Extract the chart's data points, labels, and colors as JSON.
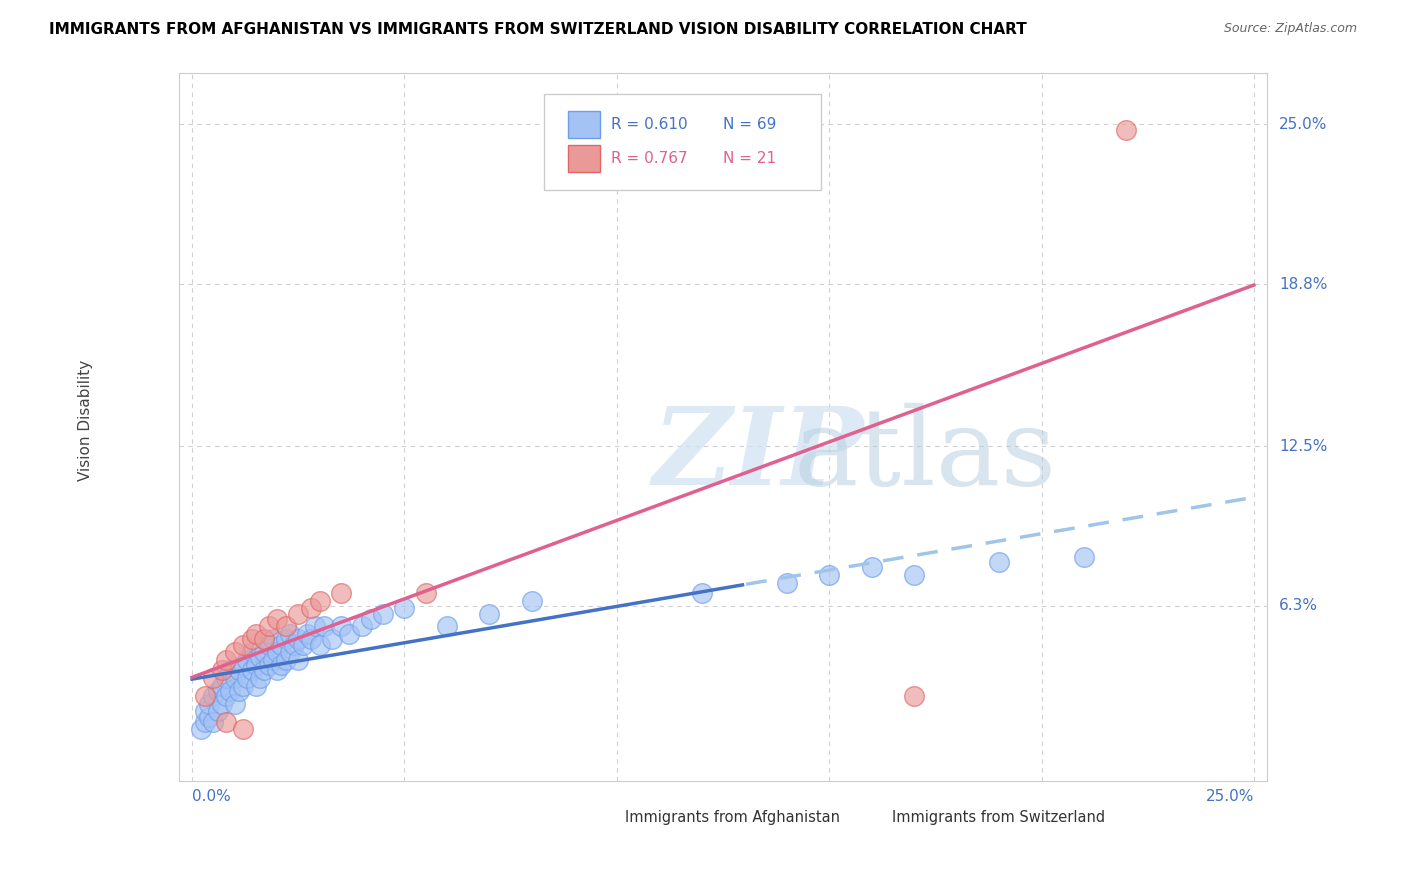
{
  "title": "IMMIGRANTS FROM AFGHANISTAN VS IMMIGRANTS FROM SWITZERLAND VISION DISABILITY CORRELATION CHART",
  "source": "Source: ZipAtlas.com",
  "ylabel": "Vision Disability",
  "ytick_labels": [
    "25.0%",
    "18.8%",
    "12.5%",
    "6.3%"
  ],
  "ytick_values": [
    0.25,
    0.188,
    0.125,
    0.063
  ],
  "xtick_labels": [
    "0.0%",
    "25.0%"
  ],
  "xmin": 0.0,
  "xmax": 0.25,
  "ymin": 0.0,
  "ymax": 0.27,
  "afghanistan_color": "#a4c2f4",
  "afghanistan_edge_color": "#6d9eeb",
  "switzerland_color": "#ea9999",
  "switzerland_edge_color": "#e06666",
  "afghanistan_R": 0.61,
  "afghanistan_N": 69,
  "switzerland_R": 0.767,
  "switzerland_N": 21,
  "grid_color": "#d0d0d0",
  "bg_color": "#ffffff",
  "trendline_blue_solid": "#4472c4",
  "trendline_blue_dashed": "#9fc5e8",
  "trendline_pink": "#e06090",
  "axis_label_color": "#4472c4",
  "title_color": "#000000",
  "source_color": "#666666",
  "ylabel_color": "#444444",
  "legend_border_color": "#cccccc",
  "legend_bg": "#ffffff",
  "bottom_legend_color": "#333333"
}
